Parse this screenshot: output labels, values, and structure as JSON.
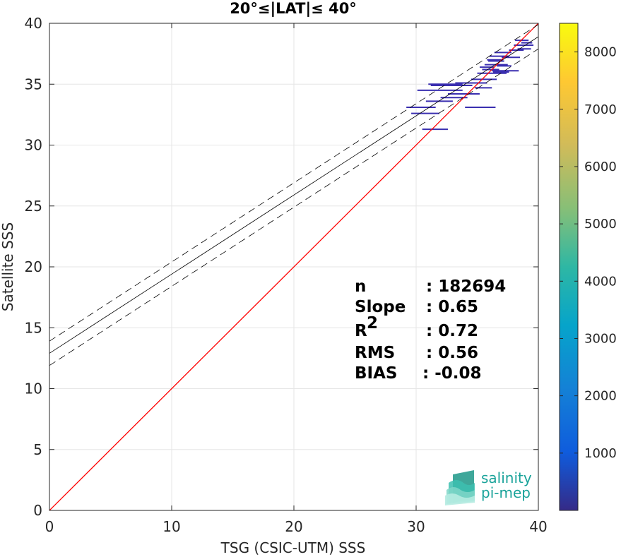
{
  "chart_data": {
    "type": "scatter",
    "title": "20°≤|LAT|≤ 40°",
    "xlabel": "TSG (CSIC-UTM) SSS",
    "ylabel": "Satellite SSS",
    "xlim": [
      0,
      40
    ],
    "ylim": [
      0,
      40
    ],
    "xticks": [
      "0",
      "10",
      "20",
      "30",
      "40"
    ],
    "yticks": [
      "0",
      "5",
      "10",
      "15",
      "20",
      "25",
      "30",
      "35",
      "40"
    ],
    "grid": true,
    "colorbar": {
      "range": [
        0,
        8500
      ],
      "ticks": [
        "1000",
        "2000",
        "3000",
        "4000",
        "5000",
        "6000",
        "7000",
        "8000"
      ],
      "colormap": "parula"
    },
    "reference_line": {
      "slope": 1,
      "intercept": 0,
      "color": "#ff0000"
    },
    "fit_line": {
      "slope": 0.65,
      "intercept": 12.9,
      "color": "#000000"
    },
    "fit_bounds": [
      {
        "slope": 0.65,
        "intercept": 13.9
      },
      {
        "slope": 0.65,
        "intercept": 11.9
      }
    ],
    "density_segments": [
      {
        "x1": 29.2,
        "x2": 31.6,
        "y": 33.1
      },
      {
        "x1": 30.5,
        "x2": 32.6,
        "y": 31.3
      },
      {
        "x1": 29.6,
        "x2": 31.9,
        "y": 32.6
      },
      {
        "x1": 30.1,
        "x2": 33.8,
        "y": 34.5
      },
      {
        "x1": 30.8,
        "x2": 33.0,
        "y": 33.6
      },
      {
        "x1": 31.2,
        "x2": 34.6,
        "y": 34.9
      },
      {
        "x1": 32.0,
        "x2": 34.2,
        "y": 33.9
      },
      {
        "x1": 34.0,
        "x2": 36.5,
        "y": 33.1
      },
      {
        "x1": 32.6,
        "x2": 35.2,
        "y": 34.2
      },
      {
        "x1": 33.2,
        "x2": 35.8,
        "y": 35.1
      },
      {
        "x1": 31.0,
        "x2": 33.8,
        "y": 35.0
      },
      {
        "x1": 34.5,
        "x2": 36.6,
        "y": 35.4
      },
      {
        "x1": 35.0,
        "x2": 37.4,
        "y": 35.9
      },
      {
        "x1": 35.4,
        "x2": 36.8,
        "y": 36.2
      },
      {
        "x1": 35.6,
        "x2": 37.5,
        "y": 36.6
      },
      {
        "x1": 35.8,
        "x2": 37.0,
        "y": 37.0
      },
      {
        "x1": 36.0,
        "x2": 37.6,
        "y": 37.3
      },
      {
        "x1": 36.4,
        "x2": 37.8,
        "y": 37.6
      },
      {
        "x1": 34.8,
        "x2": 36.2,
        "y": 34.7
      },
      {
        "x1": 35.2,
        "x2": 36.4,
        "y": 36.4
      },
      {
        "x1": 35.9,
        "x2": 37.2,
        "y": 36.9
      },
      {
        "x1": 36.2,
        "x2": 38.4,
        "y": 36.1
      },
      {
        "x1": 36.6,
        "x2": 37.8,
        "y": 36.5
      },
      {
        "x1": 37.0,
        "x2": 38.5,
        "y": 37.2
      },
      {
        "x1": 38.0,
        "x2": 39.6,
        "y": 38.2
      },
      {
        "x1": 38.3,
        "x2": 39.4,
        "y": 37.9
      },
      {
        "x1": 38.6,
        "x2": 39.5,
        "y": 38.4
      },
      {
        "x1": 37.6,
        "x2": 38.8,
        "y": 37.8
      },
      {
        "x1": 38.1,
        "x2": 39.2,
        "y": 38.6
      },
      {
        "x1": 36.3,
        "x2": 37.6,
        "y": 36.0
      }
    ],
    "stats": [
      {
        "label": "n",
        "value": ": 182694"
      },
      {
        "label": "Slope",
        "value": ": 0.65"
      },
      {
        "label": "R",
        "sup": "2",
        "value": ": 0.72"
      },
      {
        "label": "RMS",
        "value": ": 0.56"
      },
      {
        "label": "BIAS",
        "value": ": -0.08"
      }
    ]
  },
  "logo": {
    "line1": "salinity",
    "line2": "pi-mep",
    "color": "#1aa39a"
  }
}
